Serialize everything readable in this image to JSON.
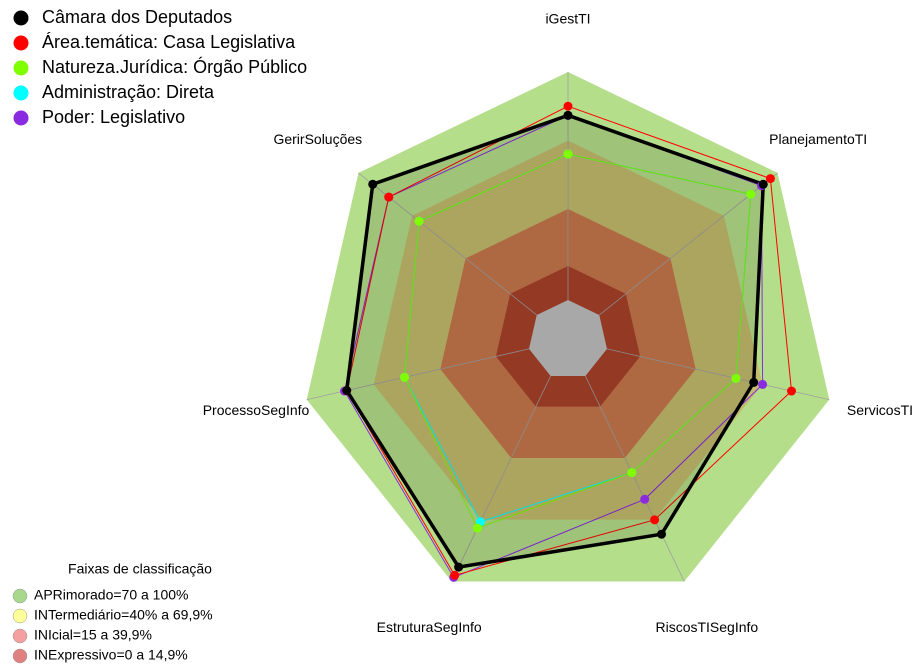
{
  "chart_data": {
    "type": "radar",
    "categories": [
      "iGestTI",
      "PlanejamentoTI",
      "ServicosTI",
      "RiscosTISegInfo",
      "EstruturaSegInfo",
      "ProcessoSegInfo",
      "GerirSoluções"
    ],
    "rlim": [
      0,
      100
    ],
    "series": [
      {
        "name": "Câmara dos Deputados",
        "color": "#000000",
        "values": [
          81,
          92,
          66,
          77,
          93,
          82,
          92
        ]
      },
      {
        "name": "Área.temática: Casa Legislativa",
        "color": "#ff0000",
        "values": [
          85,
          96,
          83,
          70,
          97,
          82,
          83
        ]
      },
      {
        "name": "Natureza.Jurídica: Órgão Público",
        "color": "#7fff00",
        "values": [
          64,
          85,
          58,
          47,
          74,
          56,
          66
        ]
      },
      {
        "name": "Administração: Direta",
        "color": "#00ffff",
        "values": [
          64,
          85,
          58,
          47,
          71,
          56,
          66
        ]
      },
      {
        "name": "Poder: Legislativo",
        "color": "#8a2be2",
        "values": [
          81,
          91,
          70,
          60,
          98,
          83,
          83
        ]
      }
    ],
    "bands_title": "Faixas de classificação",
    "bands": [
      {
        "label": "APRimorado=70 a 100%",
        "to": 100,
        "color": "#b5de8a",
        "legend_color": "#a8d88c"
      },
      {
        "label": "INTermediário=40% a 69,9%",
        "to": 69.9,
        "color": "#c4bc6e",
        "legend_color": "#ffff99"
      },
      {
        "label": "INIcial=15 a 39,9%",
        "to": 39.9,
        "color": "#c8784c",
        "legend_color": "#f4a0a0"
      },
      {
        "label": "INExpressivo=0 a 14,9%",
        "to": 14.9,
        "color": "#a8412a",
        "legend_color": "#e08080"
      }
    ]
  }
}
